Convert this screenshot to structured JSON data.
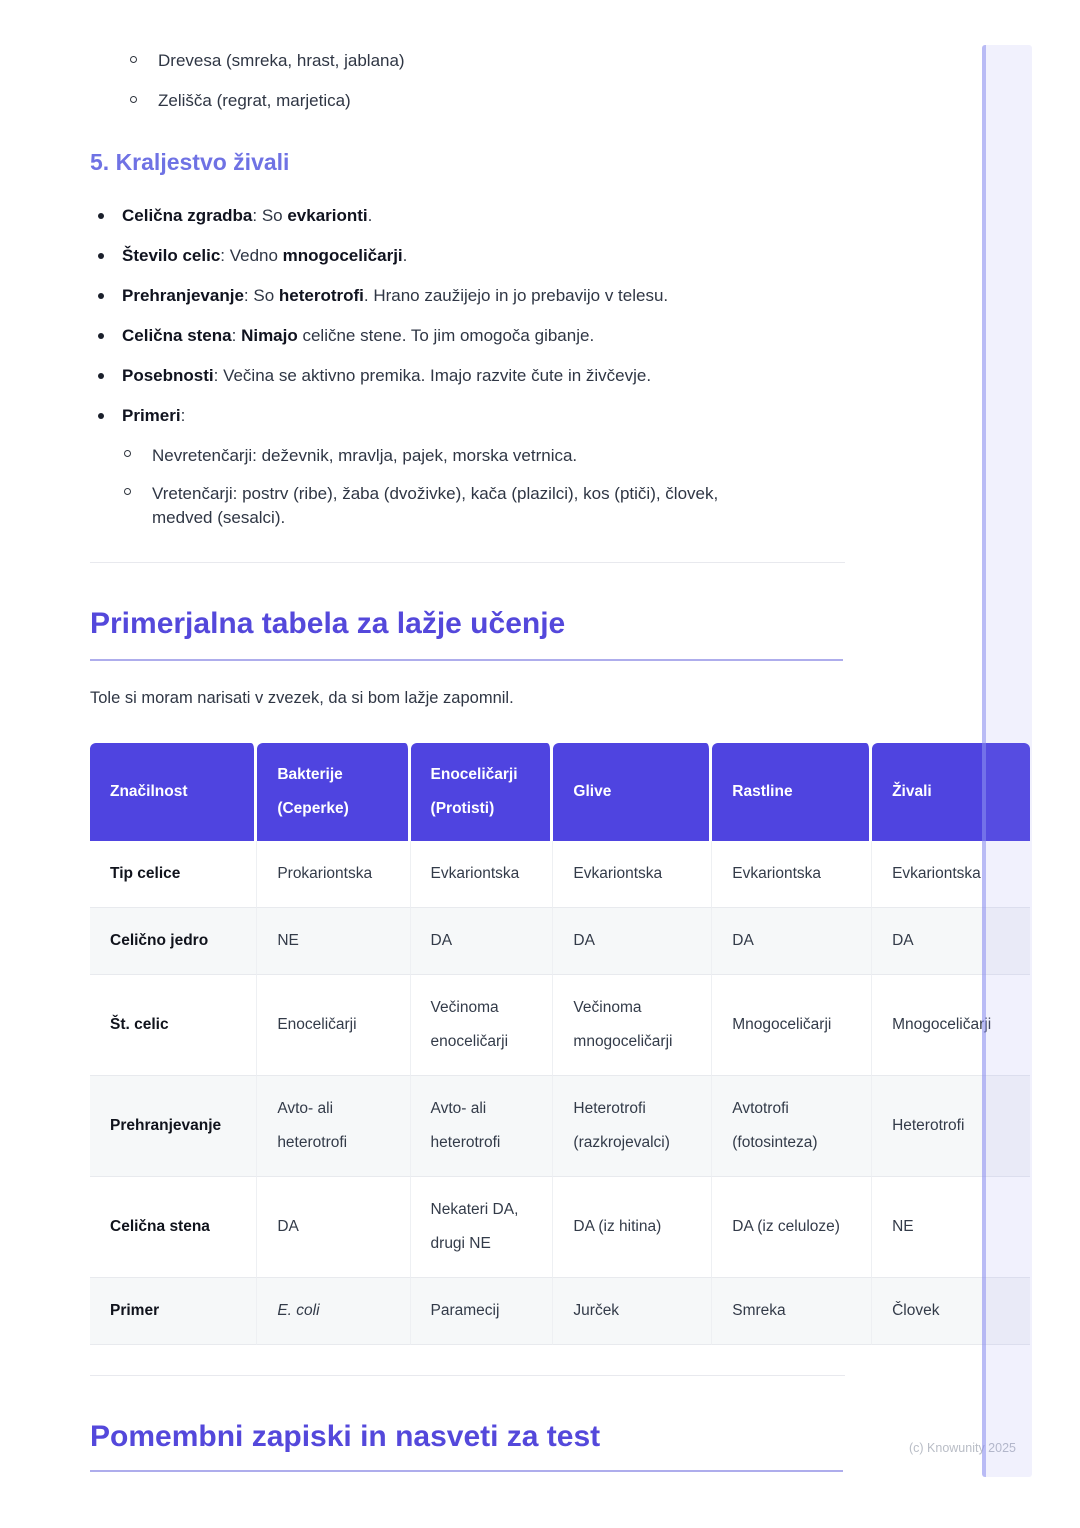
{
  "colors": {
    "accent": "#4f44e0",
    "heading": "#5448db",
    "subheading": "#6f72e4",
    "rule": "#aeadec"
  },
  "intro_list": {
    "items": [
      "Drevesa (smreka, hrast, jablana)",
      "Zelišča (regrat, marjetica)"
    ]
  },
  "section5": {
    "heading": "5. Kraljestvo živali",
    "bullets": [
      {
        "segments": [
          {
            "t": "Celična zgradba",
            "b": true
          },
          {
            "t": ": So ",
            "b": false
          },
          {
            "t": "evkarionti",
            "b": true
          },
          {
            "t": ".",
            "b": false
          }
        ]
      },
      {
        "segments": [
          {
            "t": "Število celic",
            "b": true
          },
          {
            "t": ": Vedno ",
            "b": false
          },
          {
            "t": "mnogoceličarji",
            "b": true
          },
          {
            "t": ".",
            "b": false
          }
        ]
      },
      {
        "segments": [
          {
            "t": "Prehranjevanje",
            "b": true
          },
          {
            "t": ": So ",
            "b": false
          },
          {
            "t": "heterotrofi",
            "b": true
          },
          {
            "t": ". Hrano zaužijejo in jo prebavijo v telesu.",
            "b": false
          }
        ]
      },
      {
        "segments": [
          {
            "t": "Celična stena",
            "b": true
          },
          {
            "t": ": ",
            "b": false
          },
          {
            "t": "Nimajo",
            "b": true
          },
          {
            "t": " celične stene. To jim omogoča gibanje.",
            "b": false
          }
        ]
      },
      {
        "segments": [
          {
            "t": "Posebnosti",
            "b": true
          },
          {
            "t": ": Večina se aktivno premika. Imajo razvite čute in živčevje.",
            "b": false
          }
        ]
      },
      {
        "segments": [
          {
            "t": "Primeri",
            "b": true
          },
          {
            "t": ":",
            "b": false
          }
        ],
        "sub": [
          "Nevretenčarji: deževnik, mravlja, pajek, morska vetrnica.",
          "Vretenčarji: postrv (ribe), žaba (dvoživke), kača (plazilci), kos (ptiči), človek, medved (sesalci)."
        ]
      }
    ]
  },
  "table_section": {
    "heading": "Primerjalna tabela za lažje učenje",
    "intro": "Tole si moram narisati v zvezek, da si bom lažje zapomnil.",
    "table": {
      "headers": [
        {
          "lines": [
            "Značilnost"
          ]
        },
        {
          "lines": [
            "Bakterije",
            "(Ceperke)"
          ]
        },
        {
          "lines": [
            "Enoceličarji",
            "(Protisti)"
          ]
        },
        {
          "lines": [
            "Glive"
          ]
        },
        {
          "lines": [
            "Rastline"
          ]
        },
        {
          "lines": [
            "Živali"
          ]
        }
      ],
      "rows": [
        {
          "label": "Tip celice",
          "cells": [
            "Prokariontska",
            "Evkariontska",
            "Evkariontska",
            "Evkariontska",
            "Evkariontska"
          ]
        },
        {
          "label": "Celično jedro",
          "cells": [
            "NE",
            "DA",
            "DA",
            "DA",
            "DA"
          ]
        },
        {
          "label": "Št. celic",
          "cells": [
            "Enoceličarji",
            "Večinoma enoceličarji",
            "Večinoma mnogoceličarji",
            "Mnogoceličarji",
            "Mnogoceličarji"
          ]
        },
        {
          "label": "Prehranjevanje",
          "cells": [
            "Avto- ali heterotrofi",
            "Avto- ali heterotrofi",
            "Heterotrofi (razkrojevalci)",
            "Avtotrofi (fotosinteza)",
            "Heterotrofi"
          ]
        },
        {
          "label": "Celična stena",
          "cells": [
            "DA",
            "Nekateri DA, drugi NE",
            "DA (iz hitina)",
            "DA (iz celuloze)",
            "NE"
          ]
        },
        {
          "label": "Primer",
          "cells": [
            {
              "text": "E. coli",
              "italic": true
            },
            "Paramecij",
            "Jurček",
            "Smreka",
            "Človek"
          ]
        }
      ]
    }
  },
  "notes_section": {
    "heading": "Pomembni zapiski in nasveti za test"
  },
  "footer": {
    "copyright": "(c) Knowunity 2025"
  }
}
